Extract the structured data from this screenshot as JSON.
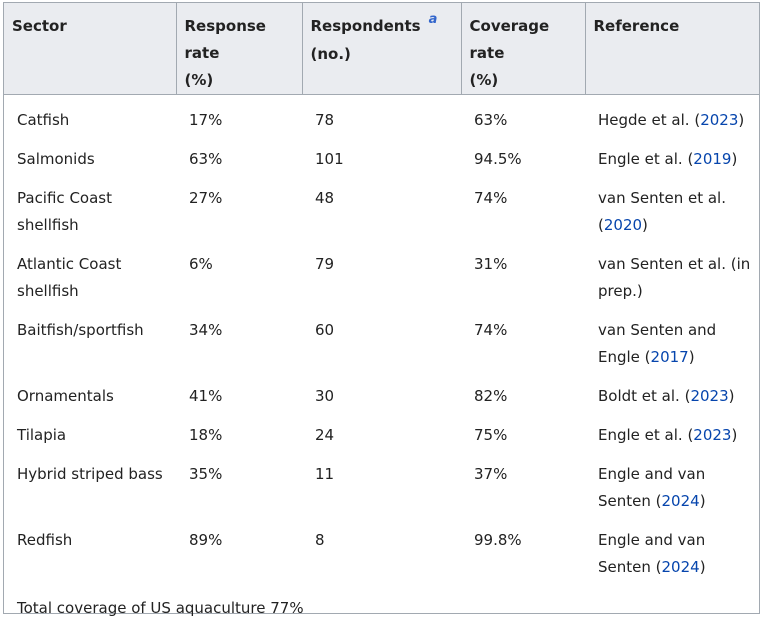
{
  "table": {
    "headers": [
      {
        "line1": "Sector",
        "line2": ""
      },
      {
        "line1": "Response rate",
        "line2": "(%)"
      },
      {
        "line1": "Respondents",
        "line2": "(no.)",
        "footnote": "a"
      },
      {
        "line1": "Coverage rate",
        "line2": "(%)"
      },
      {
        "line1": "Reference",
        "line2": ""
      }
    ],
    "rows": [
      {
        "sector": "Catfish",
        "response_rate": "17%",
        "respondents": "78",
        "coverage_rate": "63%",
        "ref_text": "Hegde et al. (",
        "ref_year": "2023",
        "ref_close": ")"
      },
      {
        "sector": "Salmonids",
        "response_rate": "63%",
        "respondents": "101",
        "coverage_rate": "94.5%",
        "ref_text": "Engle et al. (",
        "ref_year": "2019",
        "ref_close": ")"
      },
      {
        "sector": "Pacific Coast shellfish",
        "response_rate": "27%",
        "respondents": "48",
        "coverage_rate": "74%",
        "ref_text": "van Senten et al. (",
        "ref_year": "2020",
        "ref_close": ")"
      },
      {
        "sector": "Atlantic Coast shellfish",
        "response_rate": "6%",
        "respondents": "79",
        "coverage_rate": "31%",
        "ref_text": "van Senten et al. (in prep.)",
        "ref_year": "",
        "ref_close": ""
      },
      {
        "sector": "Baitfish/sportfish",
        "response_rate": "34%",
        "respondents": "60",
        "coverage_rate": "74%",
        "ref_text": "van Senten and Engle (",
        "ref_year": "2017",
        "ref_close": ")"
      },
      {
        "sector": "Ornamentals",
        "response_rate": "41%",
        "respondents": "30",
        "coverage_rate": "82%",
        "ref_text": "Boldt et al. (",
        "ref_year": "2023",
        "ref_close": ")"
      },
      {
        "sector": "Tilapia",
        "response_rate": "18%",
        "respondents": "24",
        "coverage_rate": "75%",
        "ref_text": "Engle et al. (",
        "ref_year": "2023",
        "ref_close": ")"
      },
      {
        "sector": "Hybrid striped bass",
        "response_rate": "35%",
        "respondents": "11",
        "coverage_rate": "37%",
        "ref_text": "Engle and van Senten (",
        "ref_year": "2024",
        "ref_close": ")"
      },
      {
        "sector": "Redfish",
        "response_rate": "89%",
        "respondents": "8",
        "coverage_rate": "99.8%",
        "ref_text": "Engle and van Senten (",
        "ref_year": "2024",
        "ref_close": ")"
      }
    ],
    "total": "Total coverage of US aquaculture 77%"
  }
}
